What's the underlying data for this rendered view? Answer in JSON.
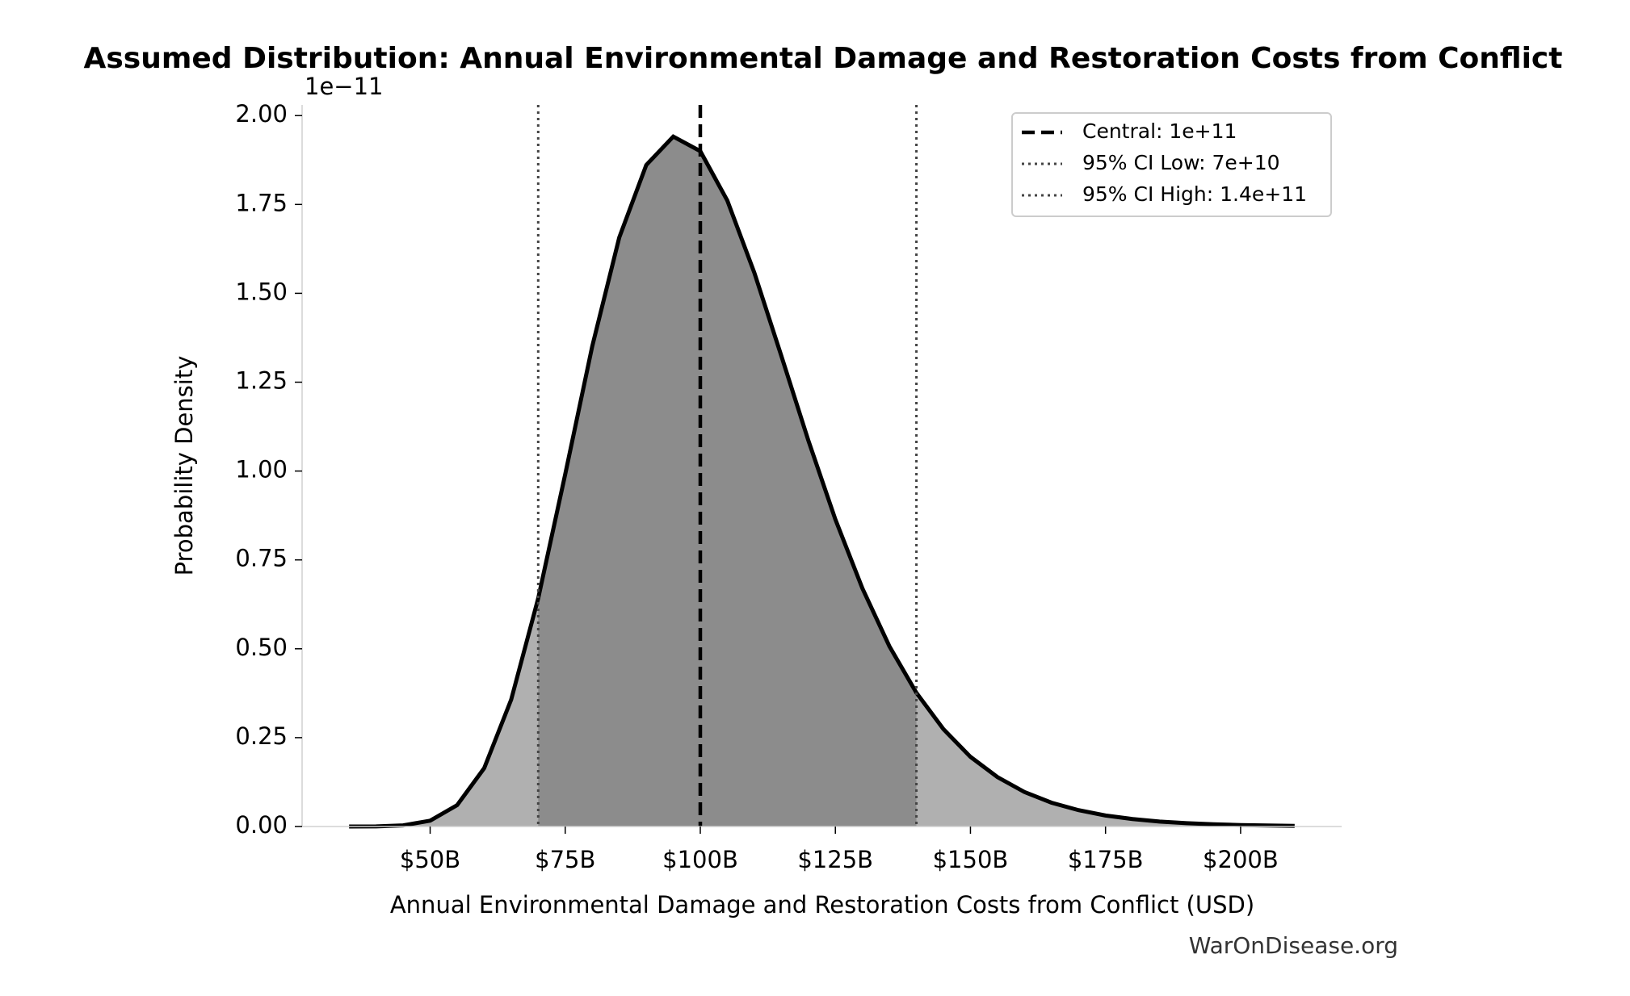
{
  "chart_data": {
    "type": "density",
    "title": "Assumed Distribution: Annual Environmental Damage and Restoration Costs from Conflict",
    "x_label": "Annual Environmental Damage and Restoration Costs from Conflict (USD)",
    "y_label": "Probability Density",
    "y_offset_label": "1e−11",
    "watermark": "WarOnDisease.org",
    "x": [
      35000000000,
      40000000000,
      45000000000,
      50000000000,
      55000000000,
      60000000000,
      65000000000,
      70000000000,
      75000000000,
      80000000000,
      85000000000,
      90000000000,
      95000000000,
      100000000000,
      105000000000,
      110000000000,
      115000000000,
      120000000000,
      125000000000,
      130000000000,
      135000000000,
      140000000000,
      145000000000,
      150000000000,
      155000000000,
      160000000000,
      165000000000,
      170000000000,
      175000000000,
      180000000000,
      185000000000,
      190000000000,
      195000000000,
      200000000000,
      205000000000,
      210000000000
    ],
    "values": [
      2e-05,
      0.00035,
      0.0031,
      0.0164,
      0.0601,
      0.164,
      0.357,
      0.642,
      0.991,
      1.351,
      1.657,
      1.861,
      1.941,
      1.9,
      1.761,
      1.558,
      1.324,
      1.086,
      0.864,
      0.67,
      0.507,
      0.376,
      0.274,
      0.196,
      0.139,
      0.097,
      0.067,
      0.046,
      0.031,
      0.021,
      0.014,
      0.0094,
      0.0062,
      0.0041,
      0.0027,
      0.0018
    ],
    "color": "#000000",
    "fill_color": "#b0b0b0",
    "ci_fill_color": "#8c8c8c",
    "reference_lines": [
      {
        "name": "Central: 1e+11",
        "value": 100000000000,
        "style": "dashed",
        "color": "#000000"
      },
      {
        "name": "95% CI Low: 7e+10",
        "value": 70000000000,
        "style": "dotted",
        "color": "#444444"
      },
      {
        "name": "95% CI High: 1.4e+11",
        "value": 140000000000,
        "style": "dotted",
        "color": "#444444"
      }
    ],
    "xlim": [
      26300000000,
      218700000000
    ],
    "xticks": [
      {
        "value": 50000000000,
        "label": "$50B"
      },
      {
        "value": 75000000000,
        "label": "$75B"
      },
      {
        "value": 100000000000,
        "label": "$100B"
      },
      {
        "value": 125000000000,
        "label": "$125B"
      },
      {
        "value": 150000000000,
        "label": "$150B"
      },
      {
        "value": 175000000000,
        "label": "$175B"
      },
      {
        "value": 200000000000,
        "label": "$200B"
      }
    ],
    "ylim": [
      0,
      2.03
    ],
    "yticks": [
      {
        "value": 0,
        "label": "0.00"
      },
      {
        "value": 0.25,
        "label": "0.25"
      },
      {
        "value": 0.5,
        "label": "0.50"
      },
      {
        "value": 0.75,
        "label": "0.75"
      },
      {
        "value": 1,
        "label": "1.00"
      },
      {
        "value": 1.25,
        "label": "1.25"
      },
      {
        "value": 1.5,
        "label": "1.50"
      },
      {
        "value": 1.75,
        "label": "1.75"
      },
      {
        "value": 2,
        "label": "2.00"
      }
    ],
    "legend": "upper right"
  }
}
